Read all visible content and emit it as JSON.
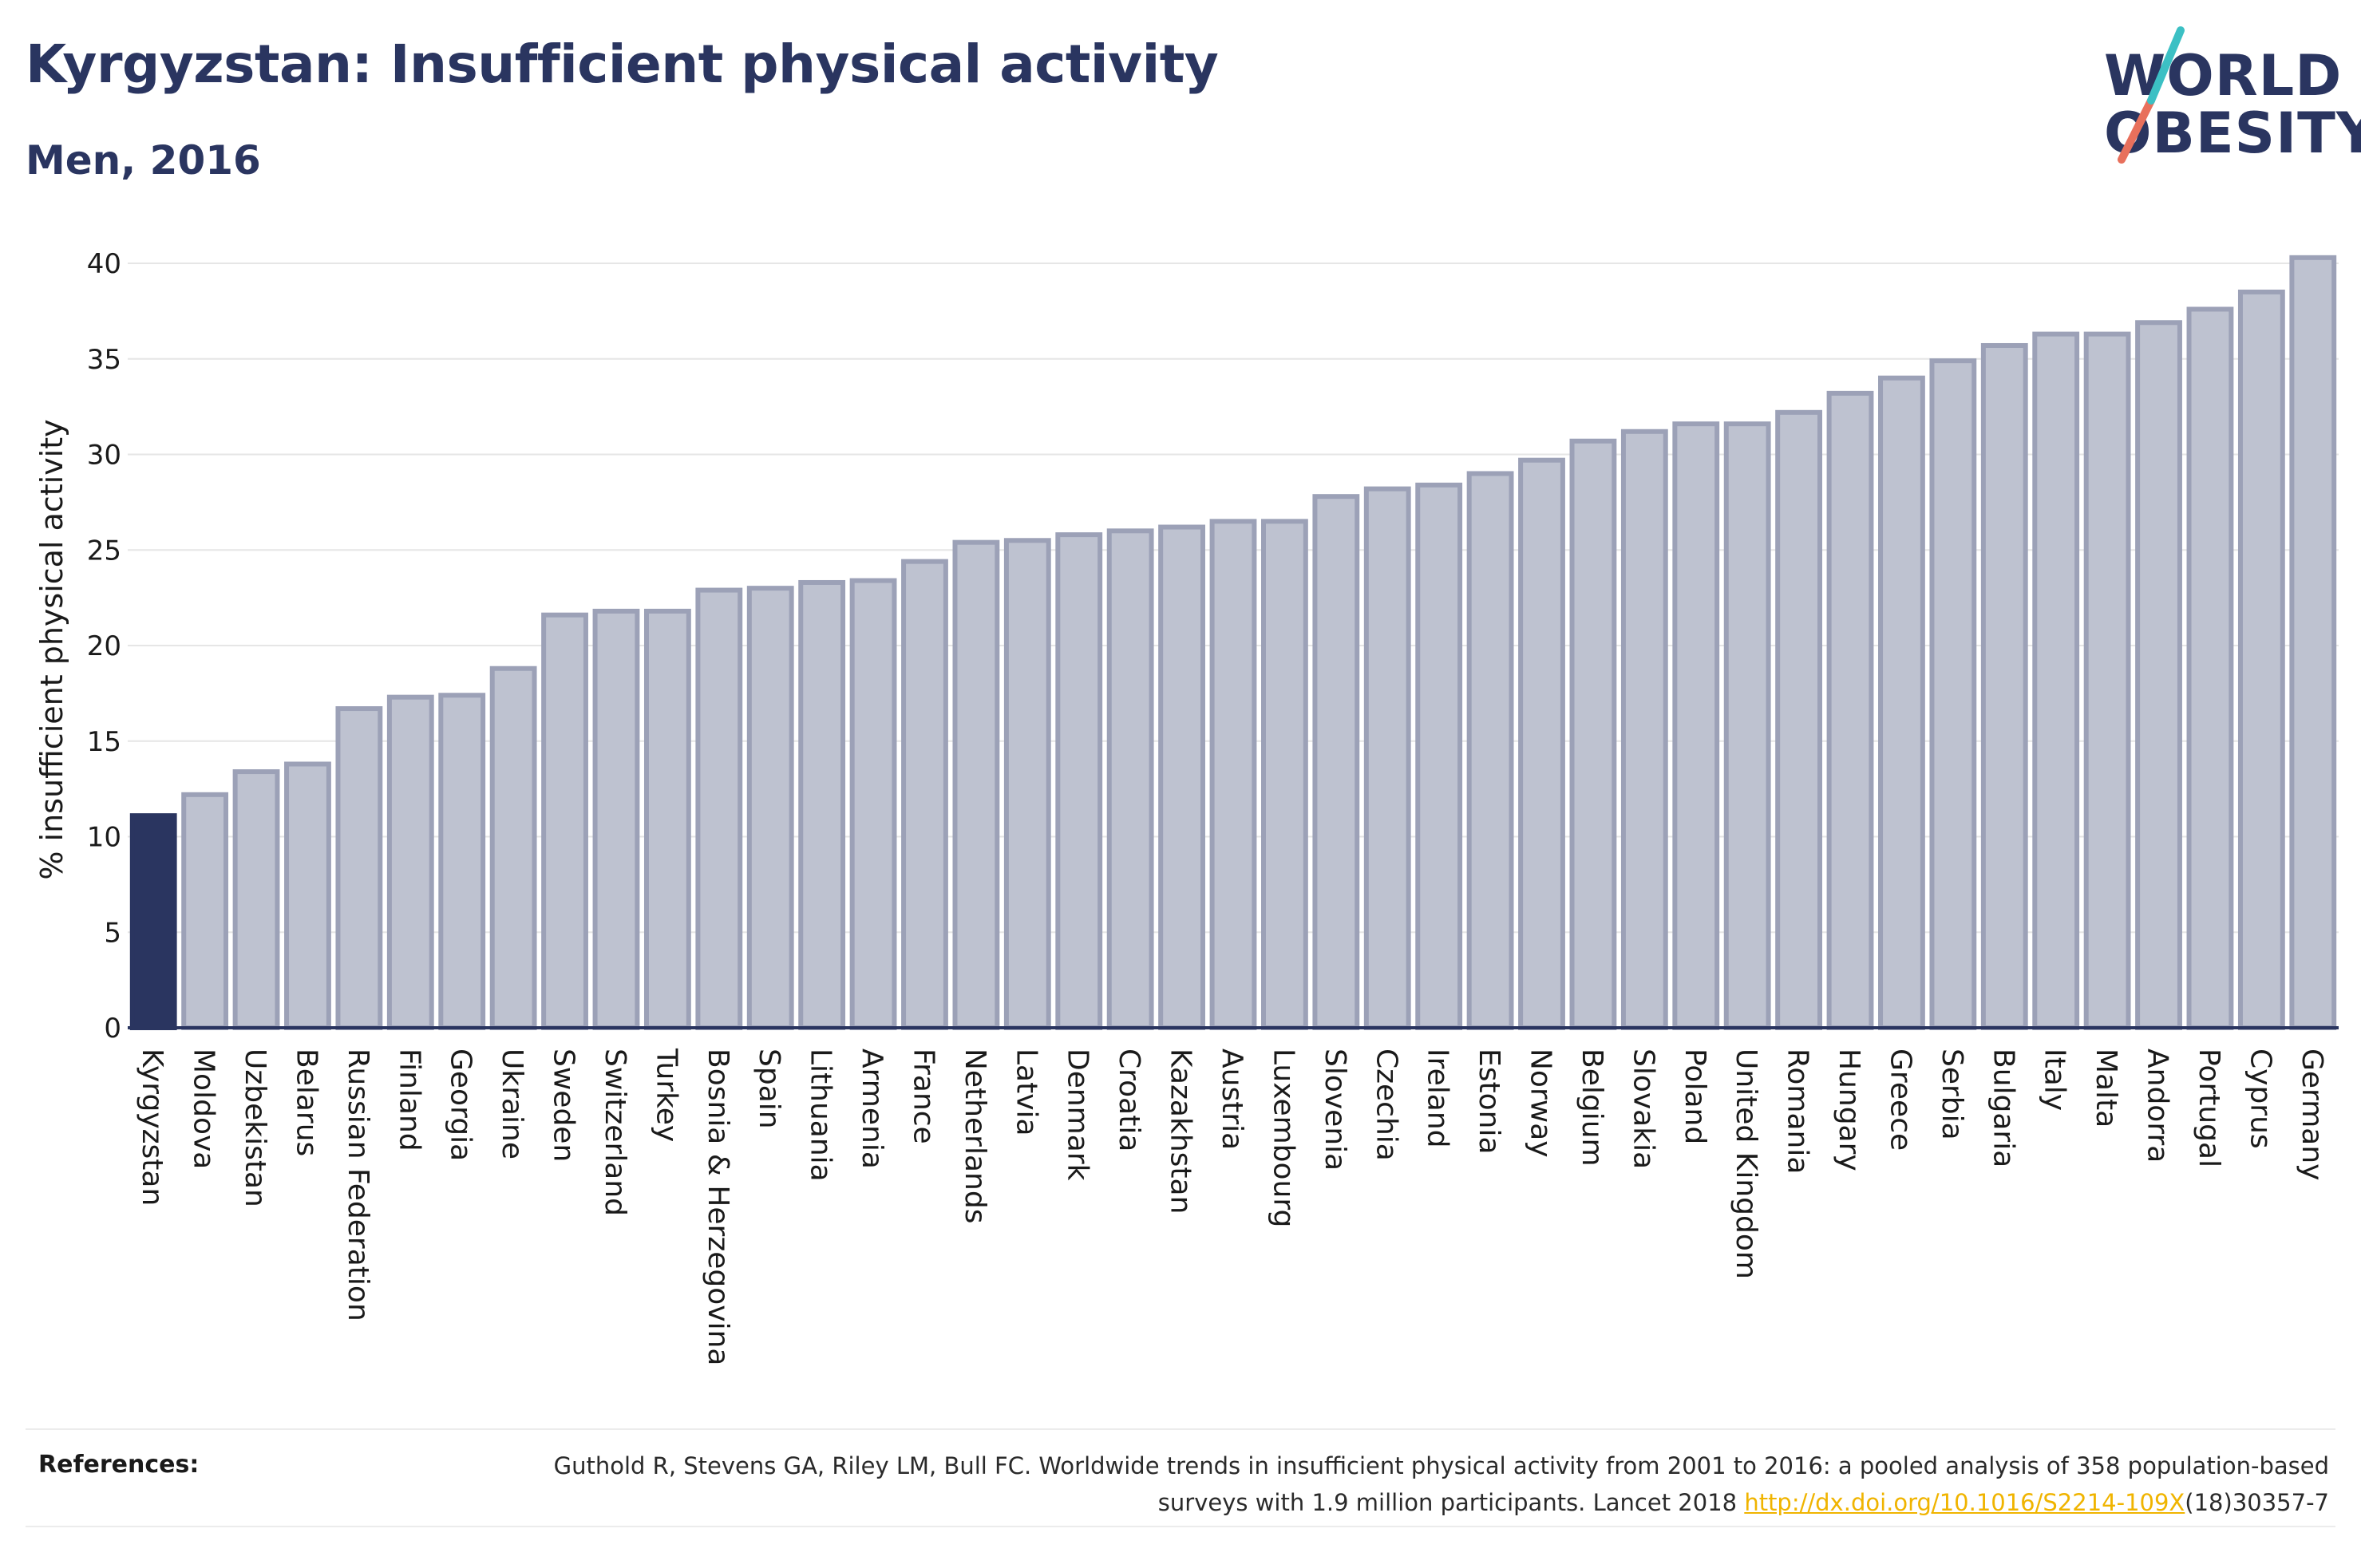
{
  "title": "Kyrgyzstan: Insufficient physical activity",
  "subtitle": "Men, 2016",
  "logo": {
    "line1": "WORLD",
    "line2": "OBESITY"
  },
  "colors": {
    "highlight": "#2a3560",
    "bar_fill": "#bec2d0",
    "bar_stroke": "#9ca1b7",
    "text": "#2a3560",
    "link": "#f0b400",
    "logo_teal": "#3cc0c4",
    "logo_coral": "#e8705c"
  },
  "chart_data": {
    "type": "bar",
    "ylabel": "% insufficient physical activity",
    "xlabel": "",
    "ylim": [
      0,
      40
    ],
    "yticks": [
      0,
      5,
      10,
      15,
      20,
      25,
      30,
      35,
      40
    ],
    "grid": true,
    "highlight_category": "Kyrgyzstan",
    "categories": [
      "Kyrgyzstan",
      "Moldova",
      "Uzbekistan",
      "Belarus",
      "Russian Federation",
      "Finland",
      "Georgia",
      "Ukraine",
      "Sweden",
      "Switzerland",
      "Turkey",
      "Bosnia & Herzegovina",
      "Spain",
      "Lithuania",
      "Armenia",
      "France",
      "Netherlands",
      "Latvia",
      "Denmark",
      "Croatia",
      "Kazakhstan",
      "Austria",
      "Luxembourg",
      "Slovenia",
      "Czechia",
      "Ireland",
      "Estonia",
      "Norway",
      "Belgium",
      "Slovakia",
      "Poland",
      "United Kingdom",
      "Romania",
      "Hungary",
      "Greece",
      "Serbia",
      "Bulgaria",
      "Italy",
      "Malta",
      "Andorra",
      "Portugal",
      "Cyprus",
      "Germany"
    ],
    "values": [
      11.1,
      12.2,
      13.4,
      13.8,
      16.7,
      17.3,
      17.4,
      18.8,
      21.6,
      21.8,
      21.8,
      22.9,
      23.0,
      23.3,
      23.4,
      24.4,
      25.4,
      25.5,
      25.8,
      26.0,
      26.2,
      26.5,
      26.5,
      27.8,
      28.2,
      28.4,
      29.0,
      29.7,
      30.7,
      31.2,
      31.6,
      31.6,
      32.2,
      33.2,
      34.0,
      34.9,
      35.7,
      36.3,
      36.3,
      36.9,
      37.6,
      38.5,
      40.3
    ]
  },
  "references": {
    "label": "References:",
    "text": "Guthold R, Stevens GA, Riley LM, Bull FC. Worldwide trends in insufficient physical activity from 2001 to 2016: a pooled analysis of 358 population-based surveys with 1.9 million participants. Lancet 2018 ",
    "link": "http://dx.doi.org/10.1016/S2214-109X",
    "suffix": "(18)30357-7"
  }
}
